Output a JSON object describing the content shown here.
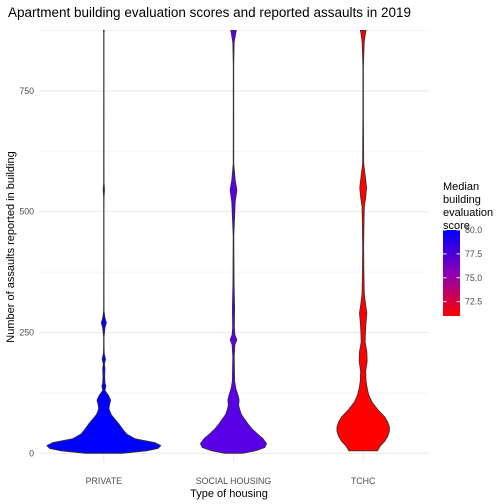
{
  "chart_data": {
    "type": "violin",
    "title": "Apartment building evaluation scores and reported assaults in 2019",
    "xlabel": "Type of housing",
    "ylabel": "Number of assaults reported in building",
    "categories": [
      "PRIVATE",
      "SOCIAL HOUSING",
      "TCHC"
    ],
    "yticks": [
      0,
      250,
      500,
      750
    ],
    "ylim": [
      -18,
      880
    ],
    "grid": true,
    "legend": {
      "title_lines": [
        "Median",
        "building",
        "evaluation",
        "score"
      ],
      "ticks": [
        80.0,
        77.5,
        75.0,
        72.5
      ],
      "tick_labels": [
        "80.0",
        "77.5",
        "75.0",
        "72.5"
      ],
      "range": [
        71.0,
        80.0
      ],
      "low_color": "#ff0000",
      "high_color": "#0000ff",
      "placement": "right"
    },
    "series": [
      {
        "category": "PRIVATE",
        "median_score": 80.0,
        "fill": "#0000ff",
        "y_min": 0,
        "y_max": 875,
        "density_profile": [
          [
            0,
            0.32
          ],
          [
            5,
            0.75
          ],
          [
            10,
            0.95
          ],
          [
            16,
            1.0
          ],
          [
            22,
            0.9
          ],
          [
            30,
            0.55
          ],
          [
            40,
            0.4
          ],
          [
            50,
            0.33
          ],
          [
            60,
            0.27
          ],
          [
            70,
            0.2
          ],
          [
            80,
            0.13
          ],
          [
            92,
            0.09
          ],
          [
            100,
            0.1
          ],
          [
            110,
            0.12
          ],
          [
            120,
            0.08
          ],
          [
            130,
            0.02
          ],
          [
            140,
            0.035
          ],
          [
            145,
            0.02
          ],
          [
            160,
            0.015
          ],
          [
            175,
            0.02
          ],
          [
            185,
            0.01
          ],
          [
            195,
            0.03
          ],
          [
            205,
            0.01
          ],
          [
            215,
            0.005
          ],
          [
            240,
            0.004
          ],
          [
            260,
            0.02
          ],
          [
            270,
            0.045
          ],
          [
            280,
            0.02
          ],
          [
            295,
            0.004
          ],
          [
            500,
            0.003
          ],
          [
            530,
            0.004
          ],
          [
            545,
            0.012
          ],
          [
            560,
            0.004
          ],
          [
            870,
            0.003
          ],
          [
            875,
            0.008
          ]
        ]
      },
      {
        "category": "SOCIAL HOUSING",
        "median_score": 78.2,
        "fill": "#5a00e6",
        "y_min": 0,
        "y_max": 875,
        "density_profile": [
          [
            0,
            0.15
          ],
          [
            5,
            0.38
          ],
          [
            12,
            0.55
          ],
          [
            20,
            0.58
          ],
          [
            30,
            0.52
          ],
          [
            40,
            0.42
          ],
          [
            50,
            0.33
          ],
          [
            60,
            0.26
          ],
          [
            70,
            0.2
          ],
          [
            80,
            0.14
          ],
          [
            90,
            0.11
          ],
          [
            100,
            0.09
          ],
          [
            110,
            0.1
          ],
          [
            120,
            0.08
          ],
          [
            135,
            0.04
          ],
          [
            150,
            0.02
          ],
          [
            200,
            0.013
          ],
          [
            225,
            0.025
          ],
          [
            235,
            0.06
          ],
          [
            245,
            0.025
          ],
          [
            260,
            0.015
          ],
          [
            300,
            0.02
          ],
          [
            350,
            0.01
          ],
          [
            450,
            0.006
          ],
          [
            520,
            0.03
          ],
          [
            545,
            0.06
          ],
          [
            565,
            0.03
          ],
          [
            600,
            0.005
          ],
          [
            800,
            0.004
          ],
          [
            850,
            0.012
          ],
          [
            870,
            0.04
          ],
          [
            875,
            0.05
          ]
        ]
      },
      {
        "category": "TCHC",
        "median_score": 71.1,
        "fill": "#ff0000",
        "y_min": 5,
        "y_max": 875,
        "density_profile": [
          [
            5,
            0.25
          ],
          [
            15,
            0.3
          ],
          [
            25,
            0.38
          ],
          [
            35,
            0.43
          ],
          [
            45,
            0.46
          ],
          [
            55,
            0.46
          ],
          [
            65,
            0.43
          ],
          [
            75,
            0.38
          ],
          [
            90,
            0.26
          ],
          [
            105,
            0.16
          ],
          [
            120,
            0.1
          ],
          [
            135,
            0.07
          ],
          [
            150,
            0.05
          ],
          [
            170,
            0.045
          ],
          [
            190,
            0.07
          ],
          [
            210,
            0.065
          ],
          [
            230,
            0.035
          ],
          [
            250,
            0.04
          ],
          [
            270,
            0.05
          ],
          [
            290,
            0.065
          ],
          [
            310,
            0.04
          ],
          [
            330,
            0.02
          ],
          [
            380,
            0.012
          ],
          [
            430,
            0.009
          ],
          [
            480,
            0.015
          ],
          [
            510,
            0.02
          ],
          [
            530,
            0.045
          ],
          [
            550,
            0.06
          ],
          [
            570,
            0.04
          ],
          [
            600,
            0.01
          ],
          [
            700,
            0.005
          ],
          [
            800,
            0.005
          ],
          [
            850,
            0.018
          ],
          [
            870,
            0.04
          ],
          [
            875,
            0.05
          ]
        ]
      }
    ]
  }
}
